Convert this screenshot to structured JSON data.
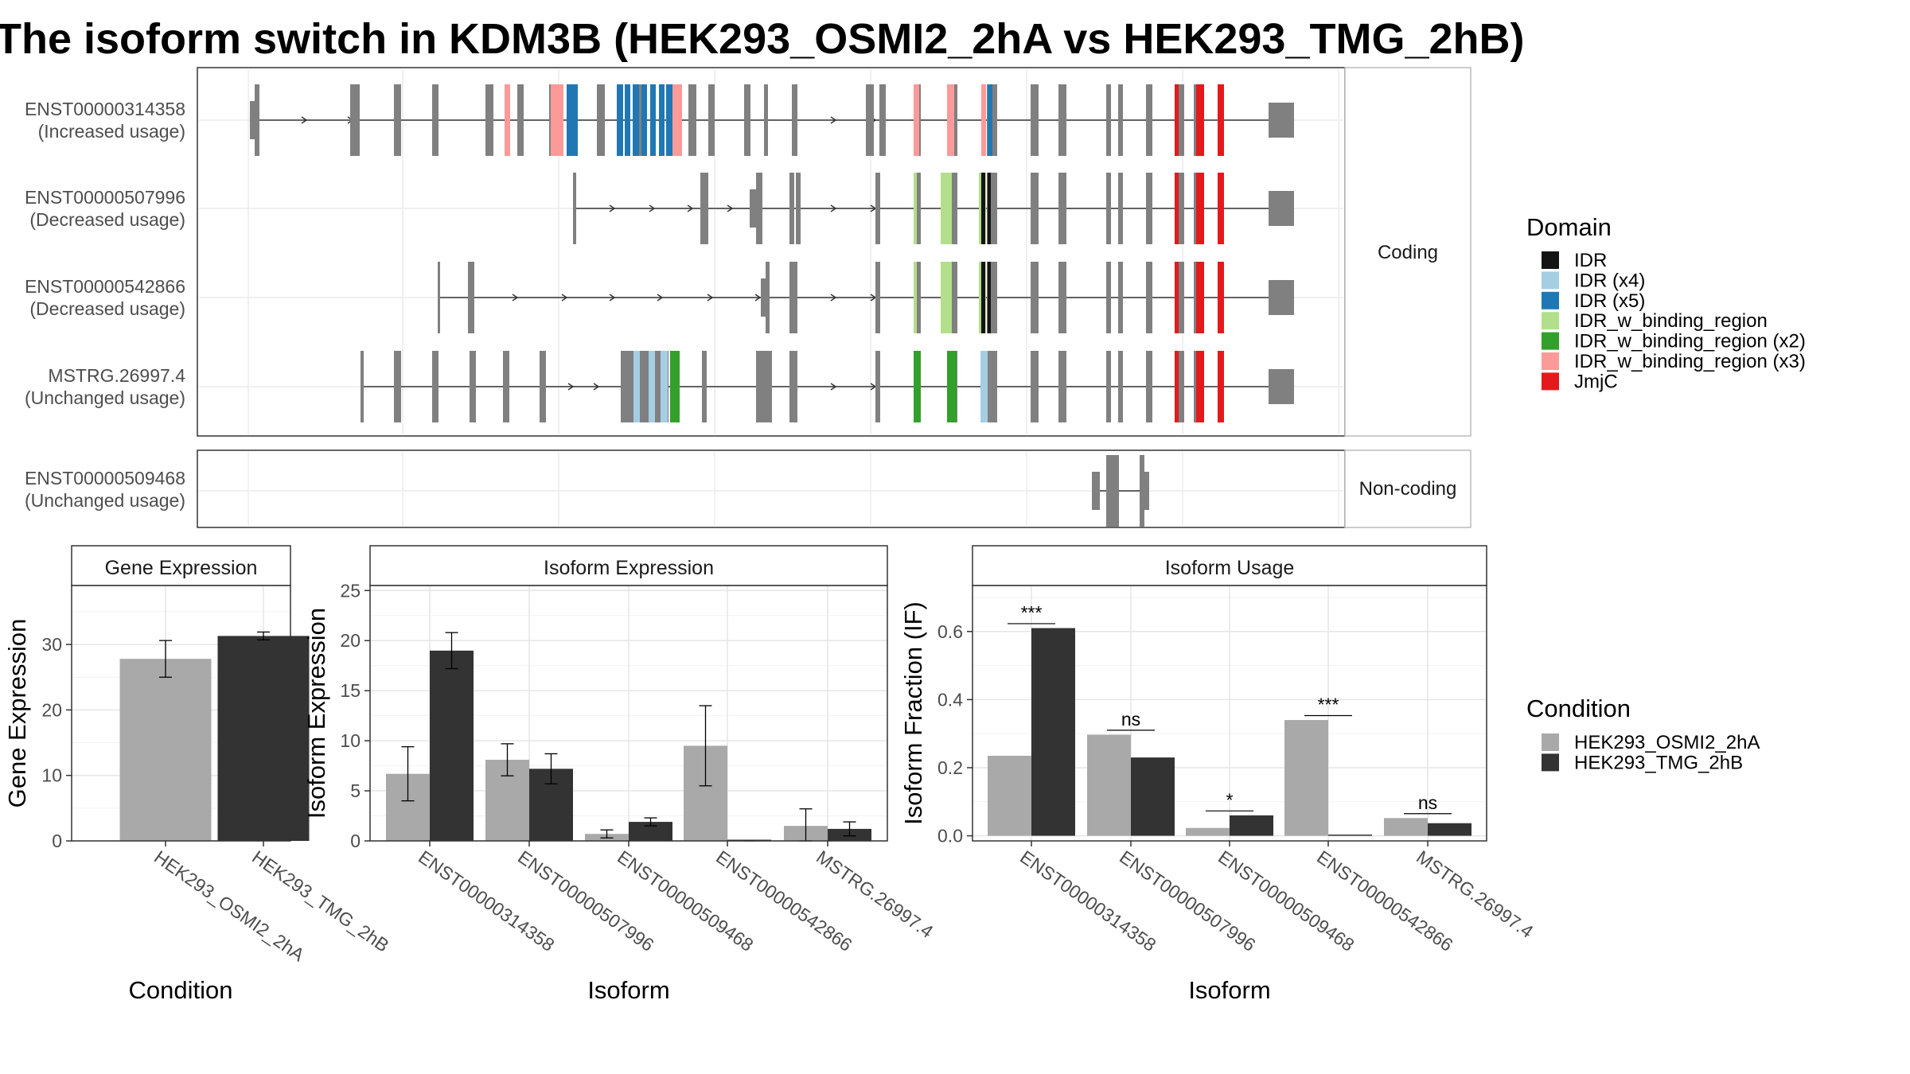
{
  "title": "The isoform switch in KDM3B (HEK293_OSMI2_2hA vs HEK293_TMG_2hB)",
  "colors": {
    "exon": "#808080",
    "IDR": "#141414",
    "IDR (x4)": "#a6cee3",
    "IDR (x5)": "#1f78b4",
    "IDR_w_binding_region": "#b2df8a",
    "IDR_w_binding_region (x2)": "#33a02c",
    "IDR_w_binding_region (x3)": "#fb9a99",
    "JmjC": "#e31a1c",
    "cond1": "#a9a9a9",
    "cond2": "#333333"
  },
  "transcripts": {
    "panel_labels": {
      "coding": "Coding",
      "noncoding": "Non-coding"
    },
    "rows": [
      {
        "id": "ENST00000314358",
        "usage": "(Increased usage)"
      },
      {
        "id": "ENST00000507996",
        "usage": "(Decreased usage)"
      },
      {
        "id": "ENST00000542866",
        "usage": "(Decreased usage)"
      },
      {
        "id": "MSTRG.26997.4",
        "usage": "(Unchanged usage)"
      },
      {
        "id": "ENST00000509468",
        "usage": "(Unchanged usage)"
      }
    ]
  },
  "legend_domain": {
    "title": "Domain",
    "items": [
      "IDR",
      "IDR (x4)",
      "IDR (x5)",
      "IDR_w_binding_region",
      "IDR_w_binding_region (x2)",
      "IDR_w_binding_region (x3)",
      "JmjC"
    ]
  },
  "legend_condition": {
    "title": "Condition",
    "items": [
      "HEK293_OSMI2_2hA",
      "HEK293_TMG_2hB"
    ]
  },
  "chart_data": [
    {
      "type": "bar",
      "title": "Gene Expression",
      "xlabel": "Condition",
      "ylabel": "Gene Expression",
      "categories": [
        "HEK293_OSMI2_2hA",
        "HEK293_TMG_2hB"
      ],
      "values": [
        27.8,
        31.3
      ],
      "error_low": [
        25.0,
        30.7
      ],
      "error_high": [
        30.6,
        31.9
      ],
      "ylim": [
        0,
        39
      ],
      "yticks": [
        0,
        10,
        20,
        30
      ]
    },
    {
      "type": "bar",
      "title": "Isoform Expression",
      "xlabel": "Isoform",
      "ylabel": "Isoform Expression",
      "categories": [
        "ENST00000314358",
        "ENST00000507996",
        "ENST00000509468",
        "ENST00000542866",
        "MSTRG.26997.4"
      ],
      "series": [
        {
          "name": "HEK293_OSMI2_2hA",
          "values": [
            6.7,
            8.1,
            0.7,
            9.5,
            1.5
          ],
          "error_low": [
            4.0,
            6.5,
            0.3,
            5.5,
            0.0
          ],
          "error_high": [
            9.4,
            9.7,
            1.1,
            13.5,
            3.2
          ]
        },
        {
          "name": "HEK293_TMG_2hB",
          "values": [
            19.0,
            7.2,
            1.9,
            0.0,
            1.2
          ],
          "error_low": [
            17.2,
            5.7,
            1.5,
            0.0,
            0.5
          ],
          "error_high": [
            20.8,
            8.7,
            2.3,
            0.0,
            1.9
          ]
        }
      ],
      "ylim": [
        0,
        25.5
      ],
      "yticks": [
        0,
        5,
        10,
        15,
        20,
        25
      ]
    },
    {
      "type": "bar",
      "title": "Isoform Usage",
      "xlabel": "Isoform",
      "ylabel": "Isoform Fraction (IF)",
      "categories": [
        "ENST00000314358",
        "ENST00000507996",
        "ENST00000509468",
        "ENST00000542866",
        "MSTRG.26997.4"
      ],
      "series": [
        {
          "name": "HEK293_OSMI2_2hA",
          "values": [
            0.235,
            0.297,
            0.023,
            0.34,
            0.052
          ]
        },
        {
          "name": "HEK293_TMG_2hB",
          "values": [
            0.61,
            0.23,
            0.06,
            0.0,
            0.037
          ]
        }
      ],
      "significance": [
        "***",
        "ns",
        "*",
        "***",
        "ns"
      ],
      "ylim": [
        -0.015,
        0.735
      ],
      "yticks": [
        0.0,
        0.2,
        0.4,
        0.6
      ],
      "ytick_labels": [
        "0.0",
        "0.2",
        "0.4",
        "0.6"
      ]
    }
  ]
}
